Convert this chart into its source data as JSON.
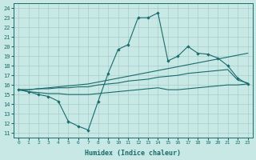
{
  "xlabel": "Humidex (Indice chaleur)",
  "background_color": "#c8e8e5",
  "line_color": "#1a6b6b",
  "xlim": [
    -0.5,
    23.5
  ],
  "ylim": [
    10.5,
    24.5
  ],
  "yticks": [
    11,
    12,
    13,
    14,
    15,
    16,
    17,
    18,
    19,
    20,
    21,
    22,
    23,
    24
  ],
  "xticks": [
    0,
    1,
    2,
    3,
    4,
    5,
    6,
    7,
    8,
    9,
    10,
    11,
    12,
    13,
    14,
    15,
    16,
    17,
    18,
    19,
    20,
    21,
    22,
    23
  ],
  "line1_x": [
    0,
    1,
    2,
    3,
    4,
    5,
    6,
    7,
    8,
    9,
    10,
    11,
    12,
    13,
    14,
    15,
    16,
    17,
    18,
    19,
    20,
    21,
    22,
    23
  ],
  "line1_y": [
    15.5,
    15.3,
    15.0,
    14.8,
    14.3,
    12.2,
    11.7,
    11.3,
    14.3,
    17.2,
    19.7,
    20.2,
    23.0,
    23.0,
    23.5,
    18.5,
    19.0,
    20.0,
    19.3,
    19.2,
    18.8,
    18.0,
    16.7,
    16.1
  ],
  "line2_x": [
    0,
    1,
    2,
    3,
    4,
    5,
    6,
    7,
    8,
    9,
    10,
    11,
    12,
    13,
    14,
    15,
    16,
    17,
    18,
    19,
    20,
    21,
    22,
    23
  ],
  "line2_y": [
    15.5,
    15.5,
    15.6,
    15.7,
    15.8,
    15.9,
    16.0,
    16.1,
    16.3,
    16.5,
    16.7,
    16.9,
    17.1,
    17.3,
    17.5,
    17.7,
    17.9,
    18.1,
    18.3,
    18.5,
    18.7,
    18.9,
    19.1,
    19.3
  ],
  "line3_x": [
    0,
    1,
    2,
    3,
    4,
    5,
    6,
    7,
    8,
    9,
    10,
    11,
    12,
    13,
    14,
    15,
    16,
    17,
    18,
    19,
    20,
    21,
    22,
    23
  ],
  "line3_y": [
    15.5,
    15.5,
    15.6,
    15.6,
    15.7,
    15.7,
    15.8,
    15.8,
    16.0,
    16.1,
    16.2,
    16.4,
    16.5,
    16.6,
    16.8,
    16.9,
    17.0,
    17.2,
    17.3,
    17.4,
    17.5,
    17.6,
    16.5,
    16.2
  ],
  "line4_x": [
    0,
    1,
    2,
    3,
    4,
    5,
    6,
    7,
    8,
    9,
    10,
    11,
    12,
    13,
    14,
    15,
    16,
    17,
    18,
    19,
    20,
    21,
    22,
    23
  ],
  "line4_y": [
    15.5,
    15.3,
    15.2,
    15.1,
    15.1,
    15.0,
    15.0,
    15.0,
    15.1,
    15.2,
    15.3,
    15.4,
    15.5,
    15.6,
    15.7,
    15.5,
    15.5,
    15.6,
    15.7,
    15.8,
    15.9,
    16.0,
    16.0,
    16.1
  ]
}
